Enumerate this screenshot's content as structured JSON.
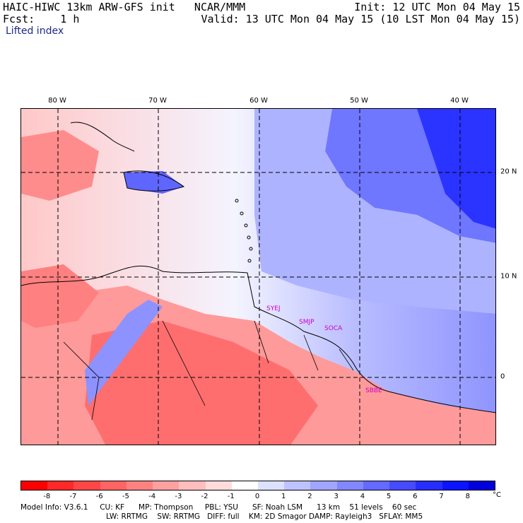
{
  "header": {
    "title_left": "HAIC-HIWC 13km ARW-GFS init   NCAR/MMM",
    "forecast": "Fcst:    1 h",
    "init": "Init: 12 UTC Mon 04 May 15",
    "valid": "Valid: 13 UTC Mon 04 May 15 (10 LST Mon 04 May 15)",
    "variable": "Lifted index"
  },
  "map": {
    "lon_labels": [
      "80 W",
      "70 W",
      "60 W",
      "50 W",
      "40 W"
    ],
    "lat_labels": [
      "20 N",
      "10 N",
      "0"
    ],
    "stations": [
      "SYEJ",
      "SMJP",
      "SOCA",
      "SBBE"
    ]
  },
  "colorbar": {
    "labels": [
      "-8",
      "-7",
      "-6",
      "-5",
      "-4",
      "-3",
      "-2",
      "-1",
      "0",
      "1",
      "2",
      "3",
      "4",
      "5",
      "6",
      "7",
      "8"
    ],
    "colors": [
      "#ff0000",
      "#ff2828",
      "#ff4646",
      "#ff6464",
      "#ff8282",
      "#ffa0a0",
      "#ffbebe",
      "#ffdcdc",
      "#ffffff",
      "#dce1ff",
      "#bec3ff",
      "#a0a5ff",
      "#8287ff",
      "#6469ff",
      "#464bff",
      "#282dff",
      "#0a14ff",
      "#0000dd"
    ],
    "unit": "°C"
  },
  "footer": {
    "line1": "Model Info: V3.6.1     CU: KF      MP: Thompson     PBL: YSU      SF: Noah LSM      13 km    51 levels    60 sec",
    "line2": "LW: RRTMG    SW: RRTMG   DIFF: full    KM: 2D Smagor DAMP: Rayleigh3   SFLAY: MM5"
  }
}
